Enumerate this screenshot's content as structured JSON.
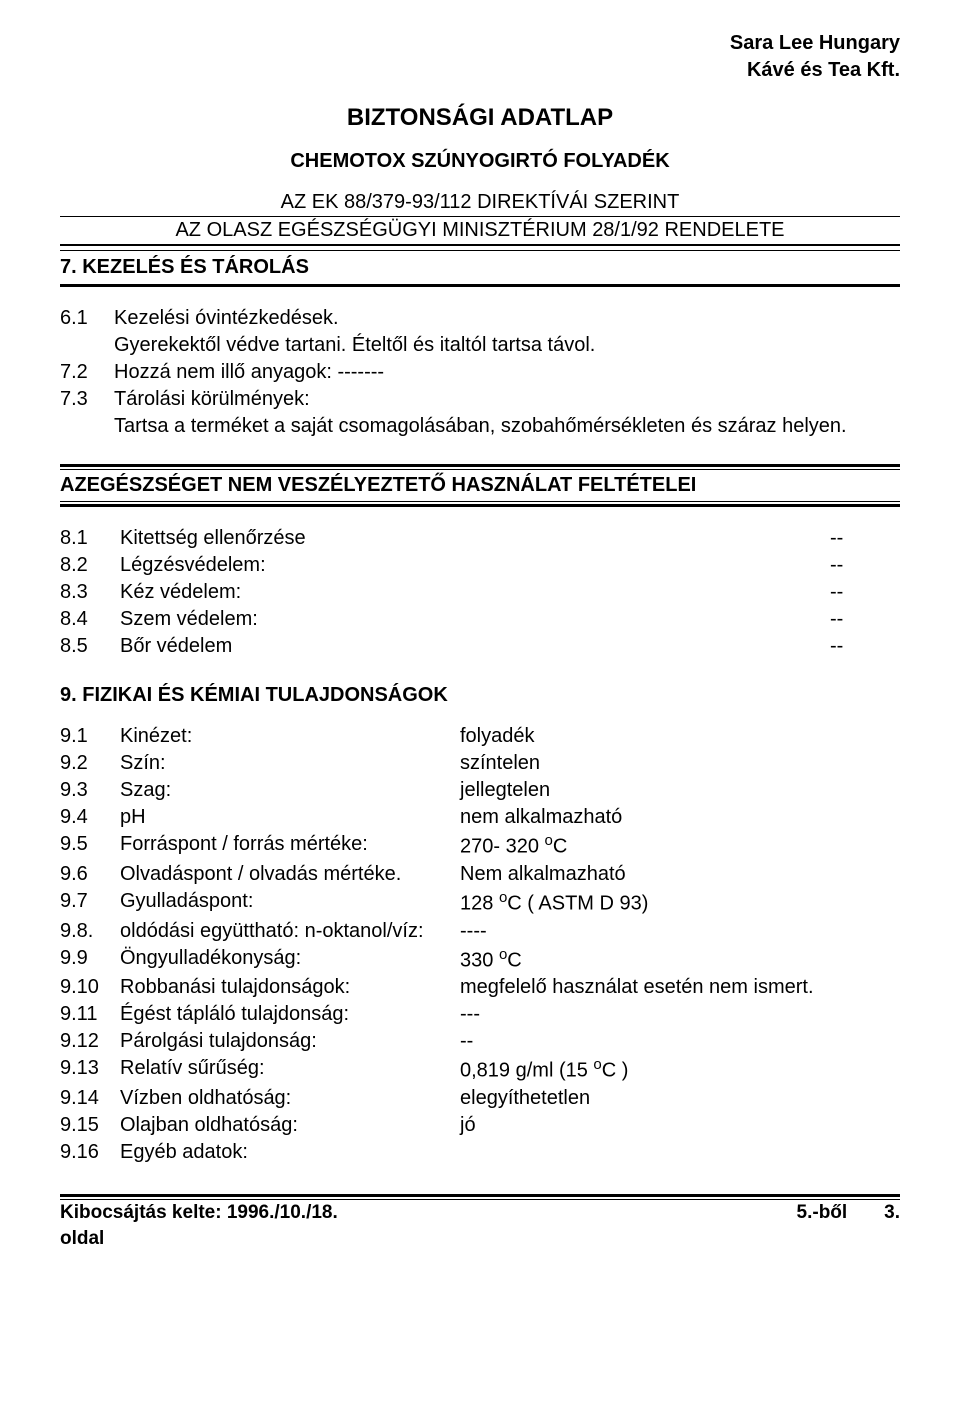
{
  "company": {
    "line1": "Sara Lee Hungary",
    "line2": "Kávé és Tea Kft."
  },
  "doc_title": "BIZTONSÁGI ADATLAP",
  "subtitle": "CHEMOTOX SZÚNYOGIRTÓ  FOLYADÉK",
  "directive": {
    "line1": "AZ EK 88/379-93/112 DIREKTÍVÁI SZERINT",
    "line2": "AZ OLASZ EGÉSZSÉGÜGYI MINISZTÉRIUM 28/1/92 RENDELETE"
  },
  "section7": {
    "heading": "7. KEZELÉS ÉS TÁROLÁS",
    "items": [
      {
        "num": "6.1",
        "text": "Kezelési óvintézkedések."
      },
      {
        "num": "",
        "text": "Gyerekektől védve tartani. Ételtől és italtól tartsa távol."
      },
      {
        "num": "7.2",
        "text": "Hozzá nem illő anyagok:               -------"
      },
      {
        "num": "7.3",
        "text": "Tárolási körülmények:"
      },
      {
        "num": "",
        "text": "Tartsa a terméket a saját csomagolásában, szobahőmérsékleten és száraz helyen.",
        "justify": true
      }
    ]
  },
  "section8": {
    "heading": "AZEGÉSZSÉGET NEM VESZÉLYEZTETŐ HASZNÁLAT FELTÉTELEI",
    "items": [
      {
        "num": "8.1",
        "label": "Kitettség ellenőrzése",
        "val": "--"
      },
      {
        "num": "8.2",
        "label": "Légzésvédelem:",
        "val": "--"
      },
      {
        "num": "8.3",
        "label": "Kéz védelem:",
        "val": "--"
      },
      {
        "num": "8.4",
        "label": "Szem védelem:",
        "val": "--"
      },
      {
        "num": "8.5",
        "label": "Bőr védelem",
        "val": "--"
      }
    ]
  },
  "section9": {
    "heading": "9. FIZIKAI ÉS KÉMIAI TULAJDONSÁGOK",
    "items": [
      {
        "num": "9.1",
        "label": "Kinézet:",
        "val": "folyadék"
      },
      {
        "num": "9.2",
        "label": "Szín:",
        "val": "színtelen"
      },
      {
        "num": "9.3",
        "label": "Szag:",
        "val": "jellegtelen"
      },
      {
        "num": "9.4",
        "label": "pH",
        "val": "nem alkalmazható"
      },
      {
        "num": "9.5",
        "label": "Forráspont / forrás mértéke:",
        "val": "270- 320 °C",
        "sup_o": true,
        "val_plain": "270- 320 ",
        "val_unit": "C"
      },
      {
        "num": "9.6",
        "label": "Olvadáspont / olvadás mértéke.",
        "val": "Nem alkalmazható"
      },
      {
        "num": "9.7",
        "label": "Gyulladáspont:",
        "val_plain": "128 ",
        "val_unit": "C ( ASTM D 93)",
        "sup_o": true
      },
      {
        "num": "9.8.",
        "label": "oldódási együttható: n-oktanol/víz:",
        "val": "       ----"
      },
      {
        "num": "9.9",
        "label": "Öngyulladékonyság:",
        "val_plain": "330 ",
        "val_unit": "C",
        "sup_o": true
      },
      {
        "num": "9.10",
        "label": "Robbanási tulajdonságok:",
        "val": "megfelelő használat esetén nem ismert."
      },
      {
        "num": "9.11",
        "label": "Égést tápláló tulajdonság:",
        "val": "---"
      },
      {
        "num": "9.12",
        "label": "Párolgási tulajdonság:",
        "val": "--"
      },
      {
        "num": "9.13",
        "label": "Relatív sűrűség:",
        "val_plain": "0,819 g/ml (15 ",
        "val_unit": "C )",
        "sup_o": true
      },
      {
        "num": "9.14",
        "label": "Vízben oldhatóság:",
        "val": "elegyíthetetlen"
      },
      {
        "num": "9.15",
        "label": "Olajban oldhatóság:",
        "val": "jó"
      },
      {
        "num": "9.16",
        "label": "Egyéb adatok:",
        "val": ""
      }
    ]
  },
  "footer": {
    "left": "Kibocsájtás kelte: 1996./10./18.",
    "right_a": "5.-ből",
    "right_b": "3.",
    "bottom": "oldal"
  }
}
